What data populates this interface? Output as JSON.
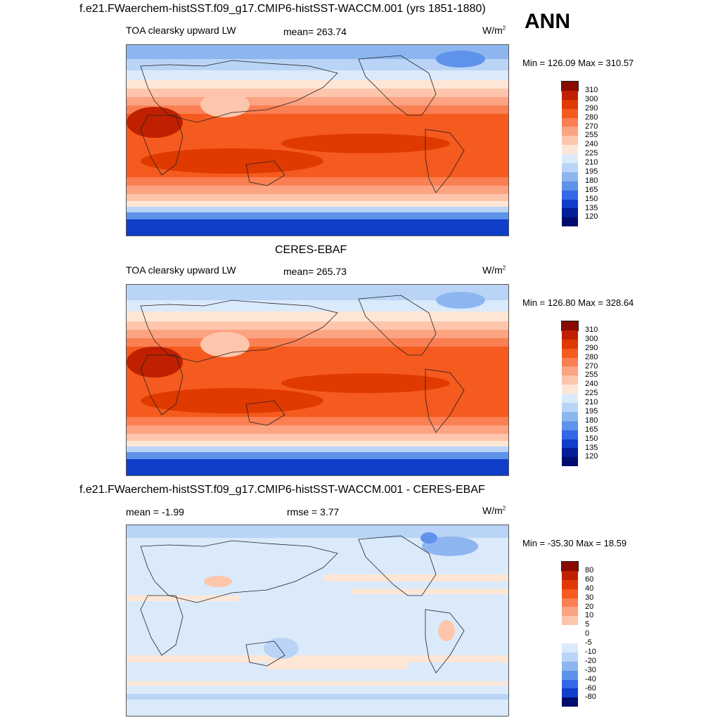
{
  "season": "ANN",
  "panel1": {
    "title": "f.e21.FWaerchem-histSST.f09_g17.CMIP6-histSST-WACCM.001 (yrs 1851-1880)",
    "variable": "TOA clearsky upward LW",
    "mean": "mean= 263.74",
    "units": "W/m",
    "units_exp": "2",
    "minmax": "Min = 126.09 Max = 310.57"
  },
  "panel2": {
    "title": "CERES-EBAF",
    "variable": "TOA clearsky upward LW",
    "mean": "mean= 265.73",
    "units": "W/m",
    "units_exp": "2",
    "minmax": "Min = 126.80 Max = 328.64"
  },
  "panel3": {
    "title": "f.e21.FWaerchem-histSST.f09_g17.CMIP6-histSST-WACCM.001 - CERES-EBAF",
    "mean": "mean =  -1.99",
    "rmse": "rmse =   3.77",
    "units": "W/m",
    "units_exp": "2",
    "minmax": "Min = -35.30 Max =  18.59"
  },
  "colorbar_abs": {
    "labels": [
      "310",
      "300",
      "290",
      "280",
      "270",
      "255",
      "240",
      "225",
      "210",
      "195",
      "180",
      "165",
      "150",
      "135",
      "120"
    ],
    "colors": [
      "#8a0a00",
      "#c02000",
      "#e03a00",
      "#f55a1e",
      "#fa7f52",
      "#fca382",
      "#fdc6ac",
      "#fee6d6",
      "#dbeafb",
      "#b9d4f6",
      "#8db6f0",
      "#5f93eb",
      "#3468e6",
      "#0f3ec9",
      "#031e96",
      "#000c70"
    ]
  },
  "colorbar_diff": {
    "labels": [
      "80",
      "60",
      "40",
      "30",
      "20",
      "10",
      "5",
      "0",
      "-5",
      "-10",
      "-20",
      "-30",
      "-40",
      "-60",
      "-80"
    ],
    "colors": [
      "#8a0a00",
      "#c02000",
      "#e03a00",
      "#f55a1e",
      "#fa7f52",
      "#fca382",
      "#fdc6ac",
      "#ffffff",
      "#ffffff",
      "#dbeafb",
      "#b9d4f6",
      "#8db6f0",
      "#5f93eb",
      "#3468e6",
      "#0f3ec9",
      "#000c70"
    ]
  }
}
